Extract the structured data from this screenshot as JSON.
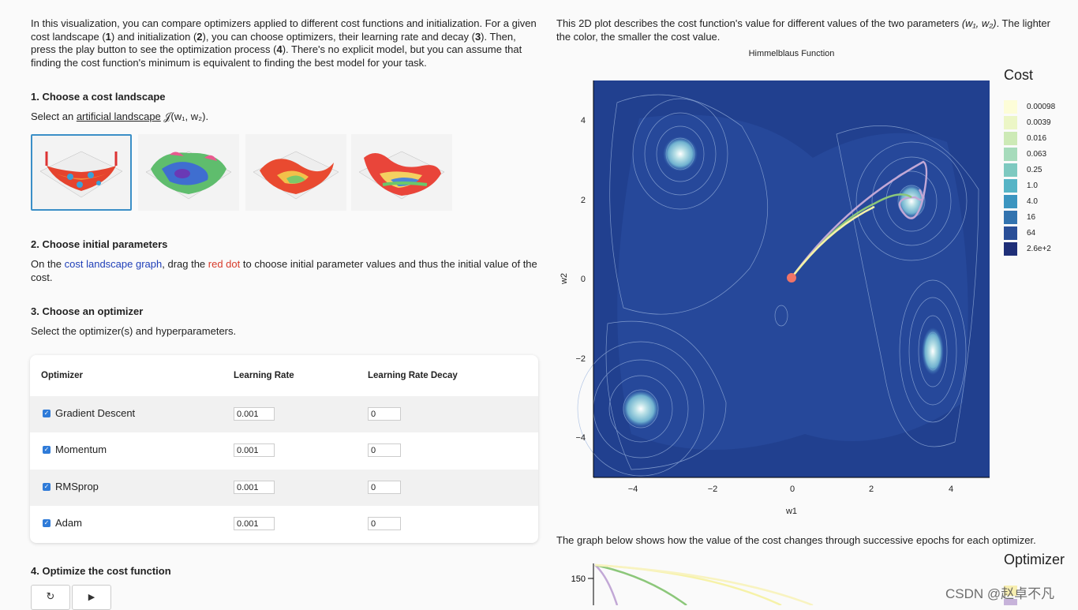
{
  "intro": {
    "t1": "In this visualization, you can compare optimizers applied to different cost functions and initialization. For a given cost landscape (",
    "n1": "1",
    "t2": ") and initialization (",
    "n2": "2",
    "t3": "), you can choose optimizers, their learning rate and decay (",
    "n3": "3",
    "t4": "). Then, press the play button to see the optimization process (",
    "n4": "4",
    "t5": "). There's no explicit model, but you can assume that finding the cost function's minimum is equivalent to finding the best model for your task."
  },
  "step1": {
    "heading": "1. Choose a cost landscape",
    "text_before": "Select an ",
    "link": "artificial landscape",
    "formula": " 𝒥(w₁, w₂).",
    "thumbnails": [
      "landscape-1",
      "landscape-2",
      "landscape-3",
      "landscape-4"
    ]
  },
  "step2": {
    "heading": "2. Choose initial parameters",
    "t1": "On the ",
    "link": "cost landscape graph",
    "t2": ", drag the ",
    "red": "red dot",
    "t3": " to choose initial parameter values and thus the initial value of the cost."
  },
  "step3": {
    "heading": "3. Choose an optimizer",
    "text": "Select the optimizer(s) and hyperparameters.",
    "columns": [
      "Optimizer",
      "Learning Rate",
      "Learning Rate Decay"
    ],
    "rows": [
      {
        "name": "Gradient Descent",
        "lr": "0.001",
        "decay": "0"
      },
      {
        "name": "Momentum",
        "lr": "0.001",
        "decay": "0"
      },
      {
        "name": "RMSprop",
        "lr": "0.001",
        "decay": "0"
      },
      {
        "name": "Adam",
        "lr": "0.001",
        "decay": "0"
      }
    ]
  },
  "step4": {
    "heading": "4. Optimize the cost function",
    "reset_icon": "reset-icon",
    "play_icon": "play-icon"
  },
  "plot": {
    "description_1": "This 2D plot describes the cost function's value for different values of the two parameters ",
    "description_math": "(w₁, w₂)",
    "description_2": ". The lighter the color, the smaller the cost value.",
    "title": "Himmelblaus Function",
    "xlabel": "w1",
    "ylabel": "w2",
    "xticks": [
      "−4",
      "−2",
      "0",
      "2",
      "4"
    ],
    "yticks": [
      "4",
      "2",
      "0",
      "−2",
      "−4"
    ],
    "legend_title": "Cost",
    "legend": [
      {
        "label": "0.00098",
        "color": "#fdfdd8"
      },
      {
        "label": "0.0039",
        "color": "#ecf6c6"
      },
      {
        "label": "0.016",
        "color": "#cdeab6"
      },
      {
        "label": "0.063",
        "color": "#a6dbbb"
      },
      {
        "label": "0.25",
        "color": "#7ec9c0"
      },
      {
        "label": "1.0",
        "color": "#56b4c6"
      },
      {
        "label": "4.0",
        "color": "#3b95c0"
      },
      {
        "label": "16",
        "color": "#3273af"
      },
      {
        "label": "64",
        "color": "#2a4f98"
      },
      {
        "label": "2.6e+2",
        "color": "#1f2f78"
      }
    ]
  },
  "bottom": {
    "description": "The graph below shows how the value of the cost changes through successive epochs for each optimizer.",
    "legend_title": "Optimizer",
    "ytick": "150"
  },
  "watermark": "CSDN @赵卓不凡"
}
